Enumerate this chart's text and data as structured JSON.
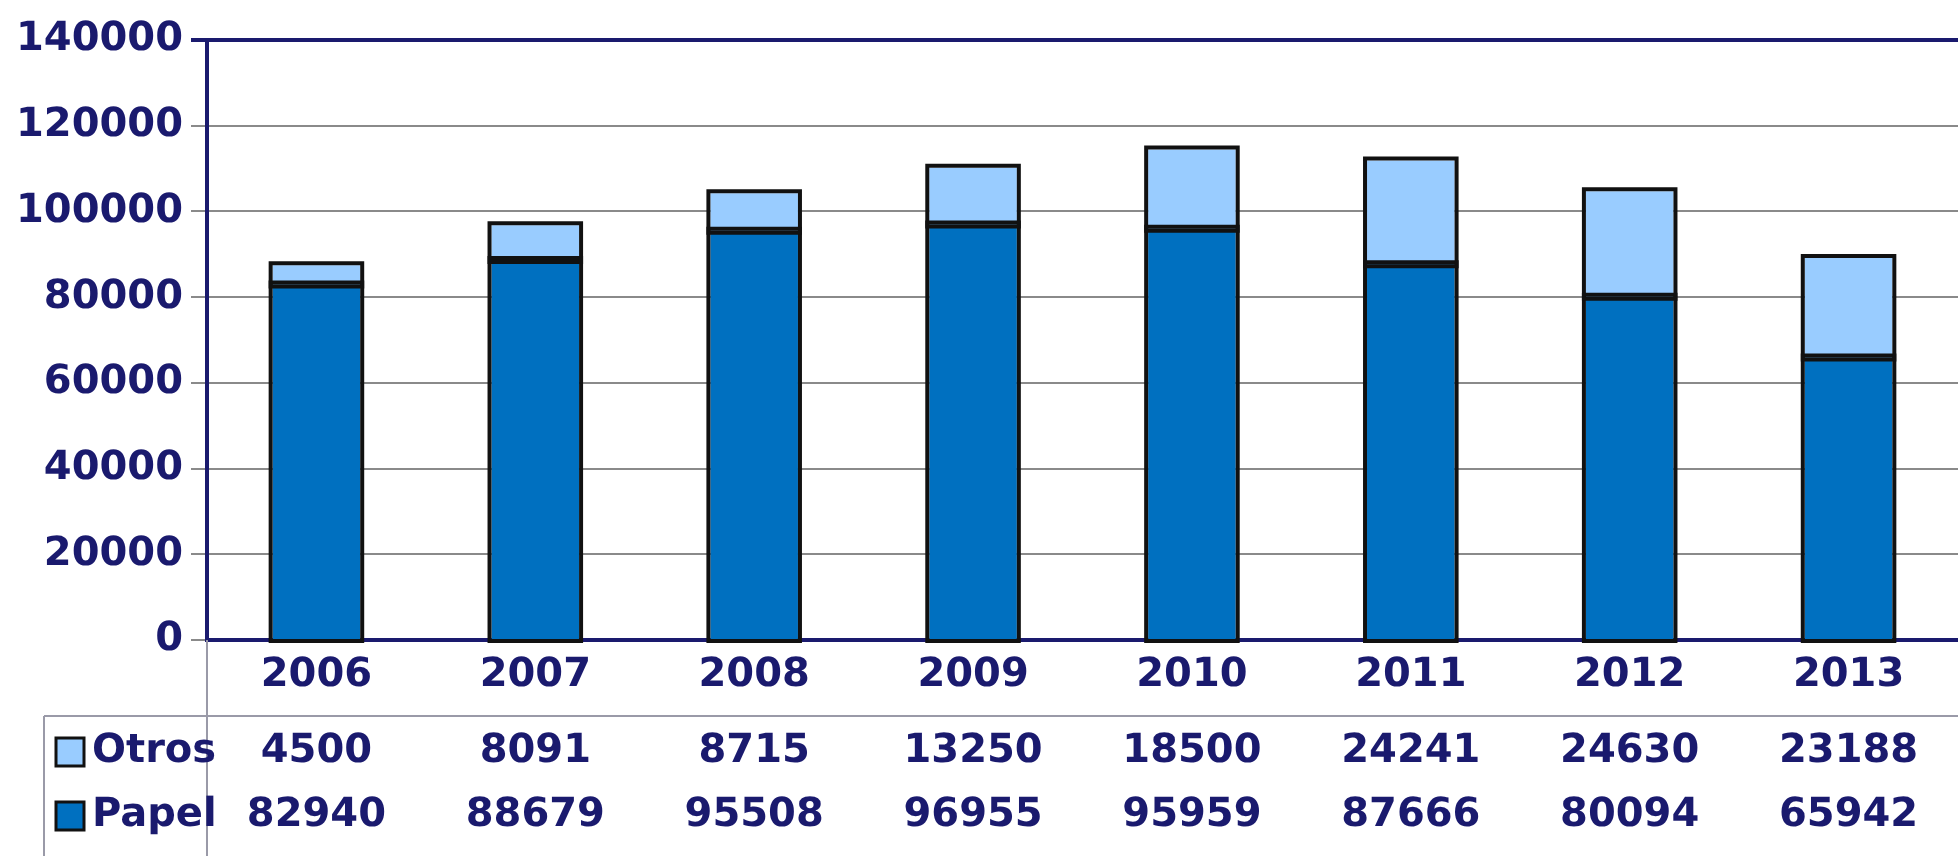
{
  "chart_data": {
    "type": "bar",
    "stacked": true,
    "categories": [
      "2006",
      "2007",
      "2008",
      "2009",
      "2010",
      "2011",
      "2012",
      "2013"
    ],
    "series": [
      {
        "name": "Papel",
        "color": "#0070c0",
        "values": [
          82940,
          88679,
          95508,
          96955,
          95959,
          87666,
          80094,
          65942
        ]
      },
      {
        "name": "Otros",
        "color": "#99ccff",
        "values": [
          4500,
          8091,
          8715,
          13250,
          18500,
          24241,
          24630,
          23188
        ]
      }
    ],
    "ylim": [
      0,
      140000
    ],
    "yticks": [
      0,
      20000,
      40000,
      60000,
      80000,
      100000,
      120000,
      140000
    ],
    "grid": "y",
    "legend": "bottom left",
    "data_labels": true
  }
}
